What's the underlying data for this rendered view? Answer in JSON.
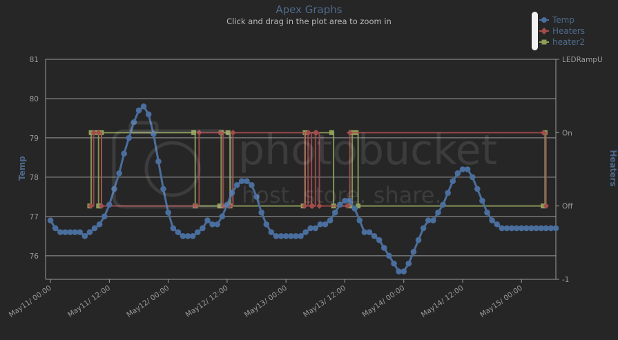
{
  "header": {
    "title": "Apex Graphs",
    "subtitle": "Click and drag in the plot area to zoom in"
  },
  "watermark": {
    "brand": "photobucket",
    "tagline": "host. store. share."
  },
  "colors": {
    "background": "#262626",
    "temp": "#4a6e9e",
    "heaters": "#a44c4c",
    "heater2": "#8e9f5a",
    "grid": "#9b9b9b",
    "axis_text": "#9a9a9a",
    "axis_title": "#4e6a8c"
  },
  "chart_data": {
    "type": "line",
    "title": "Apex Graphs",
    "subtitle": "Click and drag in the plot area to zoom in",
    "xlabel": "",
    "ylabel": "Temp",
    "y2label": "Heaters",
    "x_ticks": [
      "May11/ 00:00",
      "May11/ 12:00",
      "May12/ 00:00",
      "May12/ 12:00",
      "May13/ 00:00",
      "May13/ 12:00",
      "May14/ 00:00",
      "May14/ 12:00",
      "May15/ 00:00"
    ],
    "xlim_hours": [
      -1,
      103
    ],
    "y_ticks": [
      "76",
      "77",
      "78",
      "79",
      "80",
      "81"
    ],
    "ylim": [
      75.4,
      81
    ],
    "y2_ticks": [
      "-1",
      "Off",
      "On",
      "LEDRampU"
    ],
    "y2lim": [
      -1,
      2
    ],
    "grid": true,
    "legend_position": "top-right",
    "series": [
      {
        "name": "Temp",
        "axis": "left",
        "marker": "circle",
        "x_hours": [
          0,
          1,
          2,
          3,
          4,
          5,
          6,
          7,
          8,
          9,
          10,
          11,
          12,
          13,
          14,
          15,
          16,
          17,
          18,
          19,
          20,
          21,
          22,
          23,
          24,
          25,
          26,
          27,
          28,
          29,
          30,
          31,
          32,
          33,
          34,
          35,
          36,
          37,
          38,
          39,
          40,
          41,
          42,
          43,
          44,
          45,
          46,
          47,
          48,
          49,
          50,
          51,
          52,
          53,
          54,
          55,
          56,
          57,
          58,
          59,
          60,
          61,
          62,
          63,
          64,
          65,
          66,
          67,
          68,
          69,
          70,
          71,
          72,
          73,
          74,
          75,
          76,
          77,
          78,
          79,
          80,
          81,
          82,
          83,
          84,
          85,
          86,
          87,
          88,
          89,
          90,
          91,
          92,
          93,
          94,
          95,
          96,
          97,
          98,
          99,
          100,
          101,
          102,
          103
        ],
        "values": [
          76.9,
          76.7,
          76.6,
          76.6,
          76.6,
          76.6,
          76.6,
          76.5,
          76.6,
          76.7,
          76.8,
          77.0,
          77.3,
          77.7,
          78.1,
          78.6,
          79.0,
          79.4,
          79.7,
          79.8,
          79.6,
          79.1,
          78.4,
          77.7,
          77.1,
          76.7,
          76.6,
          76.5,
          76.5,
          76.5,
          76.6,
          76.7,
          76.9,
          76.8,
          76.8,
          77.0,
          77.3,
          77.6,
          77.8,
          77.9,
          77.9,
          77.8,
          77.5,
          77.1,
          76.8,
          76.6,
          76.5,
          76.5,
          76.5,
          76.5,
          76.5,
          76.5,
          76.6,
          76.7,
          76.7,
          76.8,
          76.8,
          76.9,
          77.1,
          77.3,
          77.4,
          77.4,
          77.2,
          76.9,
          76.6,
          76.6,
          76.5,
          76.4,
          76.2,
          76.0,
          75.8,
          75.6,
          75.6,
          75.8,
          76.1,
          76.4,
          76.7,
          76.9,
          76.9,
          77.1,
          77.3,
          77.6,
          77.9,
          78.1,
          78.2,
          78.2,
          78.0,
          77.7,
          77.4,
          77.1,
          76.9,
          76.8,
          76.7,
          76.7,
          76.7,
          76.7,
          76.7,
          76.7,
          76.7,
          76.7,
          76.7,
          76.7,
          76.7,
          76.7
        ]
      },
      {
        "name": "Heaters",
        "axis": "right",
        "marker": "diamond",
        "x_hours": [
          8.2,
          8.8,
          9.8,
          10.4,
          29.5,
          30.3,
          34.6,
          35.2,
          36.5,
          37.2,
          51.8,
          52.5,
          52.6,
          53.2,
          53.4,
          54.0,
          54.2,
          54.8,
          60.5,
          61.0,
          100.5,
          101.0
        ],
        "values": [
          0,
          1,
          1,
          0,
          0,
          1,
          1,
          0,
          0,
          1,
          0,
          1,
          1,
          0,
          0,
          1,
          1,
          0,
          0,
          1,
          1,
          0
        ]
      },
      {
        "name": "heater2",
        "axis": "right",
        "marker": "square",
        "x_hours": [
          8.0,
          8.3,
          9.5,
          9.8,
          10.1,
          10.4,
          29.2,
          29.5,
          34.5,
          34.8,
          36.2,
          36.6,
          51.5,
          51.9,
          57.3,
          57.7,
          61.2,
          61.5,
          62.3,
          62.7,
          100.4,
          100.8
        ],
        "values": [
          0,
          1,
          1,
          0,
          0,
          1,
          1,
          0,
          0,
          1,
          1,
          0,
          0,
          1,
          1,
          0,
          0,
          1,
          1,
          0,
          0,
          1
        ]
      }
    ]
  }
}
